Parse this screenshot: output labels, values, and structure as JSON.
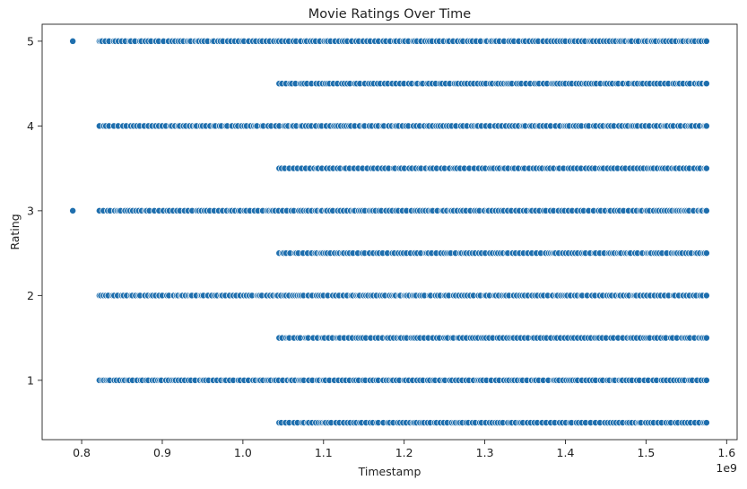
{
  "chart_data": {
    "type": "scatter",
    "title": "Movie Ratings Over Time",
    "xlabel": "Timestamp",
    "ylabel": "Rating",
    "x_scale_label": "1e9",
    "x_scale": 1000000000,
    "xlim": [
      0.751,
      1.613
    ],
    "ylim": [
      0.3,
      5.2
    ],
    "x_ticks": [
      0.8,
      0.9,
      1.0,
      1.1,
      1.2,
      1.3,
      1.4,
      1.5,
      1.6
    ],
    "x_tick_labels": [
      "0.8",
      "0.9",
      "1.0",
      "1.1",
      "1.2",
      "1.3",
      "1.4",
      "1.5",
      "1.6"
    ],
    "y_ticks": [
      1,
      2,
      3,
      4,
      5
    ],
    "y_tick_labels": [
      "1",
      "2",
      "3",
      "4",
      "5"
    ],
    "grid": false,
    "legend": "none",
    "marker_color": "#1f6fae",
    "marker_edge_color": "#ffffff",
    "outlier_points": [
      {
        "x": 0.789,
        "y": 5
      },
      {
        "x": 0.789,
        "y": 3
      }
    ],
    "rating_bands": [
      {
        "rating": 5.0,
        "x_start": 0.822,
        "x_end": 1.575
      },
      {
        "rating": 4.5,
        "x_start": 1.045,
        "x_end": 1.575
      },
      {
        "rating": 4.0,
        "x_start": 0.822,
        "x_end": 1.575
      },
      {
        "rating": 3.5,
        "x_start": 1.045,
        "x_end": 1.575
      },
      {
        "rating": 3.0,
        "x_start": 0.822,
        "x_end": 1.575
      },
      {
        "rating": 2.5,
        "x_start": 1.045,
        "x_end": 1.575
      },
      {
        "rating": 2.0,
        "x_start": 0.822,
        "x_end": 1.575
      },
      {
        "rating": 1.5,
        "x_start": 1.045,
        "x_end": 1.575
      },
      {
        "rating": 1.0,
        "x_start": 0.822,
        "x_end": 1.575
      },
      {
        "rating": 0.5,
        "x_start": 1.045,
        "x_end": 1.575
      }
    ]
  }
}
